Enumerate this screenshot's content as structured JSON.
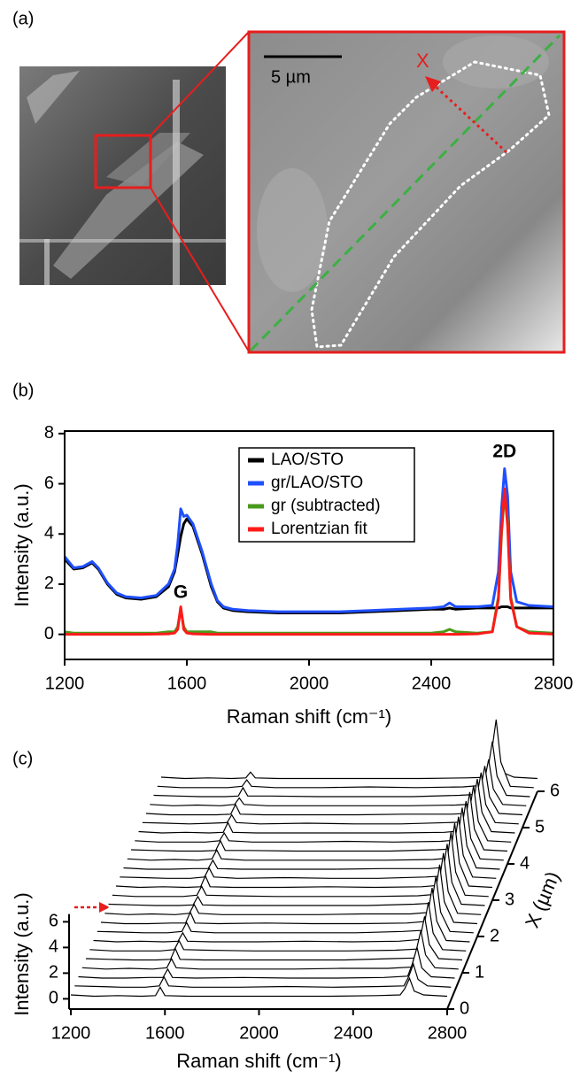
{
  "panel_labels": [
    "(a)",
    "(b)",
    "(c)"
  ],
  "image": {
    "scale_bar": "5 µm",
    "marker": "X"
  },
  "chart_data": [
    {
      "type": "line",
      "x_label": "Raman shift (cm⁻¹)",
      "y_label": "Intensity (a.u.)",
      "annotations": [
        "G",
        "2D"
      ],
      "legend": "upper center",
      "xlim": [
        1200,
        2800
      ],
      "xticks": [
        1200,
        1600,
        2000,
        2400,
        2800
      ],
      "ylim": [
        -1,
        8.1
      ],
      "yticks": [
        0,
        2,
        4,
        6,
        8
      ],
      "x": [
        1200,
        1230,
        1260,
        1290,
        1310,
        1340,
        1370,
        1400,
        1450,
        1500,
        1540,
        1560,
        1570,
        1580,
        1590,
        1600,
        1620,
        1650,
        1680,
        1700,
        1720,
        1750,
        1800,
        1900,
        2000,
        2100,
        2200,
        2300,
        2400,
        2440,
        2460,
        2480,
        2550,
        2600,
        2620,
        2630,
        2640,
        2650,
        2660,
        2680,
        2720,
        2800
      ],
      "series": [
        {
          "name": "LAO/STO",
          "color": "#000000",
          "values": [
            3.0,
            2.6,
            2.65,
            2.85,
            2.6,
            2.0,
            1.6,
            1.45,
            1.4,
            1.5,
            1.9,
            2.5,
            3.2,
            3.9,
            4.4,
            4.6,
            4.3,
            3.2,
            1.9,
            1.3,
            1.05,
            0.95,
            0.9,
            0.85,
            0.85,
            0.85,
            0.9,
            0.95,
            1.0,
            1.0,
            1.05,
            1.0,
            1.05,
            1.05,
            1.05,
            1.1,
            1.1,
            1.1,
            1.05,
            1.05,
            1.05,
            1.05
          ]
        },
        {
          "name": "gr/LAO/STO",
          "color": "#1f4fff",
          "values": [
            3.1,
            2.65,
            2.7,
            2.9,
            2.65,
            2.05,
            1.65,
            1.5,
            1.45,
            1.55,
            2.0,
            2.6,
            3.6,
            5.0,
            4.7,
            4.75,
            4.4,
            3.3,
            2.0,
            1.35,
            1.1,
            1.0,
            0.95,
            0.9,
            0.9,
            0.9,
            0.95,
            1.0,
            1.05,
            1.1,
            1.25,
            1.1,
            1.1,
            1.15,
            2.5,
            5.0,
            6.6,
            5.5,
            2.5,
            1.3,
            1.15,
            1.1
          ]
        },
        {
          "name": "gr (subtracted)",
          "color": "#4a9a1a",
          "values": [
            0.1,
            0.05,
            0.05,
            0.05,
            0.05,
            0.05,
            0.05,
            0.05,
            0.05,
            0.05,
            0.1,
            0.1,
            0.3,
            1.0,
            0.3,
            0.1,
            0.1,
            0.1,
            0.1,
            0.05,
            0.05,
            0.05,
            0.05,
            0.05,
            0.05,
            0.05,
            0.05,
            0.05,
            0.05,
            0.1,
            0.2,
            0.1,
            0.05,
            0.1,
            1.5,
            4.0,
            5.6,
            4.5,
            1.5,
            0.3,
            0.1,
            0.05
          ]
        },
        {
          "name": "Lorentzian fit",
          "color": "#ff1a1a",
          "values": [
            0,
            0,
            0,
            0,
            0,
            0,
            0,
            0,
            0,
            0.01,
            0.02,
            0.05,
            0.2,
            1.1,
            0.2,
            0.05,
            0.02,
            0.01,
            0,
            0,
            0,
            0,
            0,
            0,
            0,
            0,
            0,
            0,
            0,
            0,
            0,
            0,
            0.02,
            0.1,
            1.4,
            4.2,
            5.8,
            4.3,
            1.4,
            0.3,
            0.05,
            0.01
          ]
        }
      ]
    },
    {
      "type": "waterfall",
      "x_label": "Raman shift (cm⁻¹)",
      "y_label": "Intensity (a.u.)",
      "z_label": "X (µm)",
      "color": "#000000",
      "xlim": [
        1200,
        2800
      ],
      "xticks": [
        1200,
        1600,
        2000,
        2400,
        2800
      ],
      "ylim": [
        -0.8,
        6.6
      ],
      "yticks": [
        0,
        2,
        4,
        6
      ],
      "zlim": [
        0,
        6
      ],
      "zticks": [
        0,
        1,
        2,
        3,
        4,
        5,
        6
      ],
      "x": [
        1200,
        1300,
        1400,
        1500,
        1560,
        1580,
        1600,
        1700,
        1900,
        2100,
        2300,
        2500,
        2600,
        2620,
        2640,
        2660,
        2700,
        2800
      ],
      "z": [
        0,
        0.25,
        0.5,
        0.75,
        1,
        1.25,
        1.5,
        1.75,
        2,
        2.25,
        2.5,
        2.75,
        3,
        3.25,
        3.5,
        3.75,
        4,
        4.25,
        4.5,
        4.75,
        5,
        5.25,
        5.5,
        5.75,
        6
      ],
      "series": [
        {
          "values": [
            0.3,
            0.2,
            0.25,
            0.2,
            0.25,
            0.9,
            0.25,
            0.2,
            0.2,
            0.2,
            0.2,
            0.25,
            0.3,
            0.8,
            1.6,
            0.6,
            0.3,
            0.2
          ]
        },
        {
          "values": [
            0.3,
            0.25,
            0.2,
            0.2,
            0.3,
            1.0,
            0.3,
            0.2,
            0.2,
            0.25,
            0.2,
            0.25,
            0.3,
            1.0,
            2.0,
            0.8,
            0.3,
            0.2
          ]
        },
        {
          "values": [
            0.3,
            0.2,
            0.2,
            0.25,
            0.25,
            0.9,
            0.25,
            0.2,
            0.25,
            0.2,
            0.2,
            0.25,
            0.35,
            1.3,
            2.6,
            1.0,
            0.3,
            0.2
          ]
        },
        {
          "values": [
            0.3,
            0.2,
            0.25,
            0.2,
            0.3,
            1.0,
            0.3,
            0.2,
            0.2,
            0.2,
            0.25,
            0.25,
            0.35,
            1.6,
            3.2,
            1.3,
            0.3,
            0.2
          ]
        },
        {
          "values": [
            0.3,
            0.25,
            0.2,
            0.2,
            0.25,
            1.1,
            0.25,
            0.2,
            0.2,
            0.2,
            0.2,
            0.3,
            0.35,
            1.8,
            3.6,
            1.4,
            0.3,
            0.2
          ]
        },
        {
          "values": [
            0.3,
            0.2,
            0.2,
            0.2,
            0.3,
            1.0,
            0.3,
            0.25,
            0.2,
            0.2,
            0.2,
            0.25,
            0.35,
            2.0,
            4.0,
            1.6,
            0.3,
            0.2
          ]
        },
        {
          "values": [
            0.3,
            0.2,
            0.25,
            0.2,
            0.25,
            0.9,
            0.25,
            0.2,
            0.2,
            0.25,
            0.2,
            0.25,
            0.4,
            2.2,
            4.4,
            1.8,
            0.3,
            0.2
          ]
        },
        {
          "values": [
            0.3,
            0.25,
            0.2,
            0.2,
            0.3,
            1.0,
            0.3,
            0.2,
            0.2,
            0.2,
            0.2,
            0.3,
            0.4,
            2.3,
            4.6,
            1.8,
            0.3,
            0.2
          ]
        },
        {
          "values": [
            0.3,
            0.2,
            0.2,
            0.25,
            0.25,
            1.1,
            0.25,
            0.2,
            0.25,
            0.2,
            0.2,
            0.25,
            0.4,
            2.4,
            4.8,
            1.9,
            0.3,
            0.2
          ]
        },
        {
          "values": [
            0.3,
            0.2,
            0.25,
            0.2,
            0.3,
            1.0,
            0.3,
            0.2,
            0.2,
            0.2,
            0.25,
            0.25,
            0.4,
            2.5,
            5.0,
            2.0,
            0.3,
            0.2
          ]
        },
        {
          "values": [
            0.3,
            0.25,
            0.2,
            0.2,
            0.25,
            0.9,
            0.25,
            0.2,
            0.2,
            0.2,
            0.2,
            0.3,
            0.4,
            2.5,
            5.0,
            2.0,
            0.3,
            0.2
          ]
        },
        {
          "values": [
            0.3,
            0.2,
            0.2,
            0.2,
            0.3,
            1.0,
            0.3,
            0.25,
            0.2,
            0.2,
            0.2,
            0.25,
            0.4,
            2.6,
            5.2,
            2.1,
            0.3,
            0.2
          ]
        },
        {
          "values": [
            0.3,
            0.2,
            0.25,
            0.2,
            0.25,
            1.1,
            0.25,
            0.2,
            0.2,
            0.25,
            0.2,
            0.25,
            0.4,
            2.6,
            5.2,
            2.1,
            0.3,
            0.2
          ]
        },
        {
          "values": [
            0.3,
            0.25,
            0.2,
            0.2,
            0.3,
            1.0,
            0.3,
            0.2,
            0.25,
            0.2,
            0.2,
            0.3,
            0.4,
            2.5,
            5.0,
            2.0,
            0.3,
            0.2
          ]
        },
        {
          "values": [
            0.3,
            0.2,
            0.2,
            0.25,
            0.25,
            0.9,
            0.25,
            0.2,
            0.2,
            0.2,
            0.25,
            0.25,
            0.4,
            2.5,
            5.0,
            2.0,
            0.3,
            0.2
          ]
        },
        {
          "values": [
            0.3,
            0.2,
            0.25,
            0.2,
            0.3,
            1.0,
            0.3,
            0.2,
            0.2,
            0.2,
            0.2,
            0.25,
            0.4,
            2.4,
            4.8,
            1.9,
            0.3,
            0.2
          ]
        },
        {
          "values": [
            0.3,
            0.25,
            0.2,
            0.2,
            0.25,
            1.0,
            0.25,
            0.25,
            0.2,
            0.2,
            0.2,
            0.3,
            0.4,
            2.4,
            4.8,
            1.9,
            0.3,
            0.2
          ]
        },
        {
          "values": [
            0.3,
            0.2,
            0.2,
            0.2,
            0.3,
            0.9,
            0.3,
            0.2,
            0.2,
            0.25,
            0.2,
            0.25,
            0.4,
            2.3,
            4.6,
            1.8,
            0.3,
            0.2
          ]
        },
        {
          "values": [
            0.3,
            0.2,
            0.25,
            0.2,
            0.25,
            1.0,
            0.25,
            0.2,
            0.2,
            0.2,
            0.2,
            0.25,
            0.4,
            2.2,
            4.4,
            1.8,
            0.3,
            0.2
          ]
        },
        {
          "values": [
            0.3,
            0.25,
            0.2,
            0.25,
            0.3,
            0.9,
            0.3,
            0.2,
            0.25,
            0.2,
            0.2,
            0.3,
            0.35,
            2.1,
            4.2,
            1.7,
            0.3,
            0.2
          ]
        },
        {
          "values": [
            0.3,
            0.2,
            0.2,
            0.2,
            0.25,
            1.0,
            0.25,
            0.2,
            0.2,
            0.2,
            0.25,
            0.25,
            0.35,
            2.0,
            4.0,
            1.6,
            0.3,
            0.2
          ]
        },
        {
          "values": [
            0.3,
            0.2,
            0.25,
            0.2,
            0.3,
            0.8,
            0.3,
            0.2,
            0.2,
            0.2,
            0.2,
            0.25,
            0.35,
            1.9,
            3.8,
            1.5,
            0.3,
            0.2
          ]
        },
        {
          "values": [
            0.3,
            0.25,
            0.2,
            0.2,
            0.25,
            0.9,
            0.25,
            0.25,
            0.2,
            0.2,
            0.2,
            0.3,
            0.4,
            2.2,
            4.5,
            1.8,
            0.3,
            0.2
          ]
        },
        {
          "values": [
            0.3,
            0.2,
            0.2,
            0.2,
            0.3,
            0.8,
            0.3,
            0.2,
            0.2,
            0.25,
            0.2,
            0.25,
            0.4,
            2.8,
            5.5,
            2.2,
            0.3,
            0.2
          ]
        },
        {
          "values": [
            0.3,
            0.2,
            0.25,
            0.2,
            0.25,
            0.7,
            0.25,
            0.2,
            0.2,
            0.2,
            0.2,
            0.25,
            0.3,
            0.8,
            1.5,
            0.6,
            0.3,
            0.2
          ]
        }
      ]
    }
  ]
}
